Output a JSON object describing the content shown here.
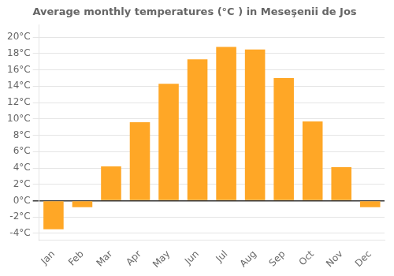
{
  "chart_data": {
    "type": "bar",
    "title": "Average monthly temperatures (°C ) in Meseşenii de Jos",
    "categories": [
      "Jan",
      "Feb",
      "Mar",
      "Apr",
      "May",
      "Jun",
      "Jul",
      "Aug",
      "Sep",
      "Oct",
      "Nov",
      "Dec"
    ],
    "values": [
      -3.5,
      -0.8,
      4.2,
      9.6,
      14.3,
      17.3,
      18.8,
      18.5,
      15.0,
      9.7,
      4.1,
      -0.8
    ],
    "color": "#FFA726",
    "ylim": [
      -4.8,
      21.5
    ],
    "yticks": [
      {
        "value": -4,
        "label": "-4°C"
      },
      {
        "value": -2,
        "label": "-2°C"
      },
      {
        "value": 0,
        "label": "0°C"
      },
      {
        "value": 2,
        "label": "2°C"
      },
      {
        "value": 4,
        "label": "4°C"
      },
      {
        "value": 6,
        "label": "6°C"
      },
      {
        "value": 8,
        "label": "8°C"
      },
      {
        "value": 10,
        "label": "10°C"
      },
      {
        "value": 12,
        "label": "12°C"
      },
      {
        "value": 14,
        "label": "14°C"
      },
      {
        "value": 16,
        "label": "16°C"
      },
      {
        "value": 18,
        "label": "18°C"
      },
      {
        "value": 20,
        "label": "20°C"
      }
    ],
    "grid": true
  }
}
